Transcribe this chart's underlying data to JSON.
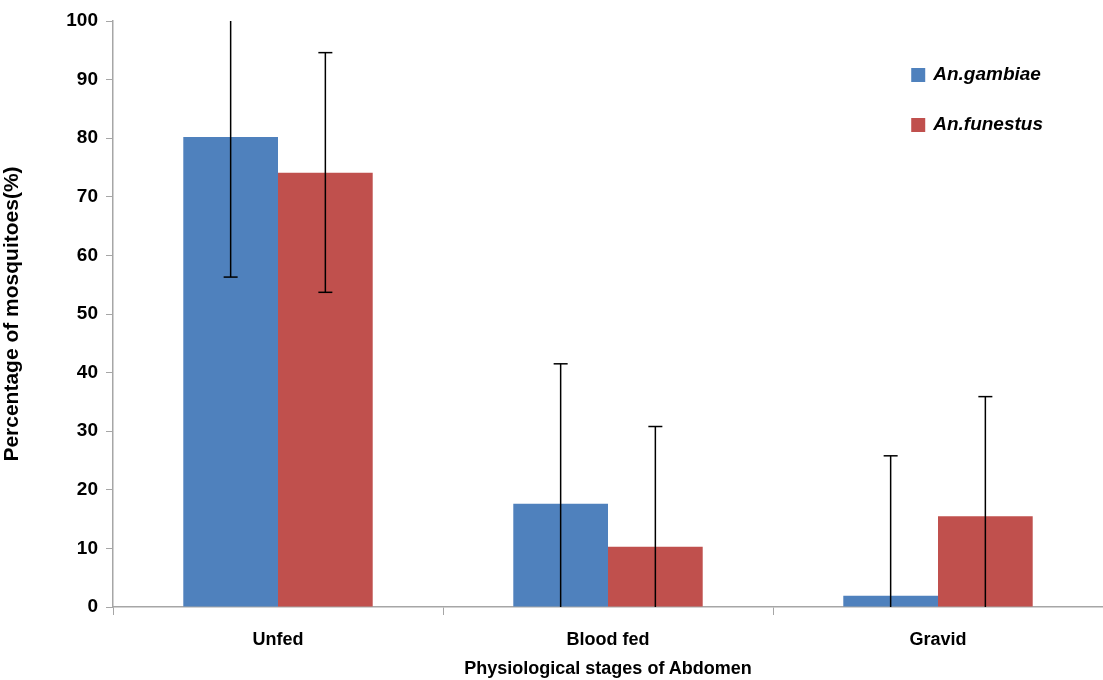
{
  "chart_data": {
    "type": "bar",
    "xlabel": "Physiological stages of Abdomen",
    "ylabel": "Percentage of mosquitoes(%)",
    "categories": [
      "Unfed",
      "Blood fed",
      "Gravid"
    ],
    "series": [
      {
        "name": "An.gambiae",
        "color": "#4f81bd",
        "values": [
          80.2,
          17.6,
          1.9
        ],
        "errors": [
          [
            56.3,
            100
          ],
          [
            0,
            41.5
          ],
          [
            0,
            25.8
          ]
        ]
      },
      {
        "name": "An.funestus",
        "color": "#c0504d",
        "values": [
          74.1,
          10.3,
          15.5
        ],
        "errors": [
          [
            53.7,
            94.6
          ],
          [
            0,
            30.8
          ],
          [
            0,
            35.9
          ]
        ]
      }
    ],
    "ylim": [
      0,
      100
    ],
    "yticks": [
      0,
      10,
      20,
      30,
      40,
      50,
      60,
      70,
      80,
      90,
      100
    ],
    "grid": false,
    "legend": "top right"
  }
}
